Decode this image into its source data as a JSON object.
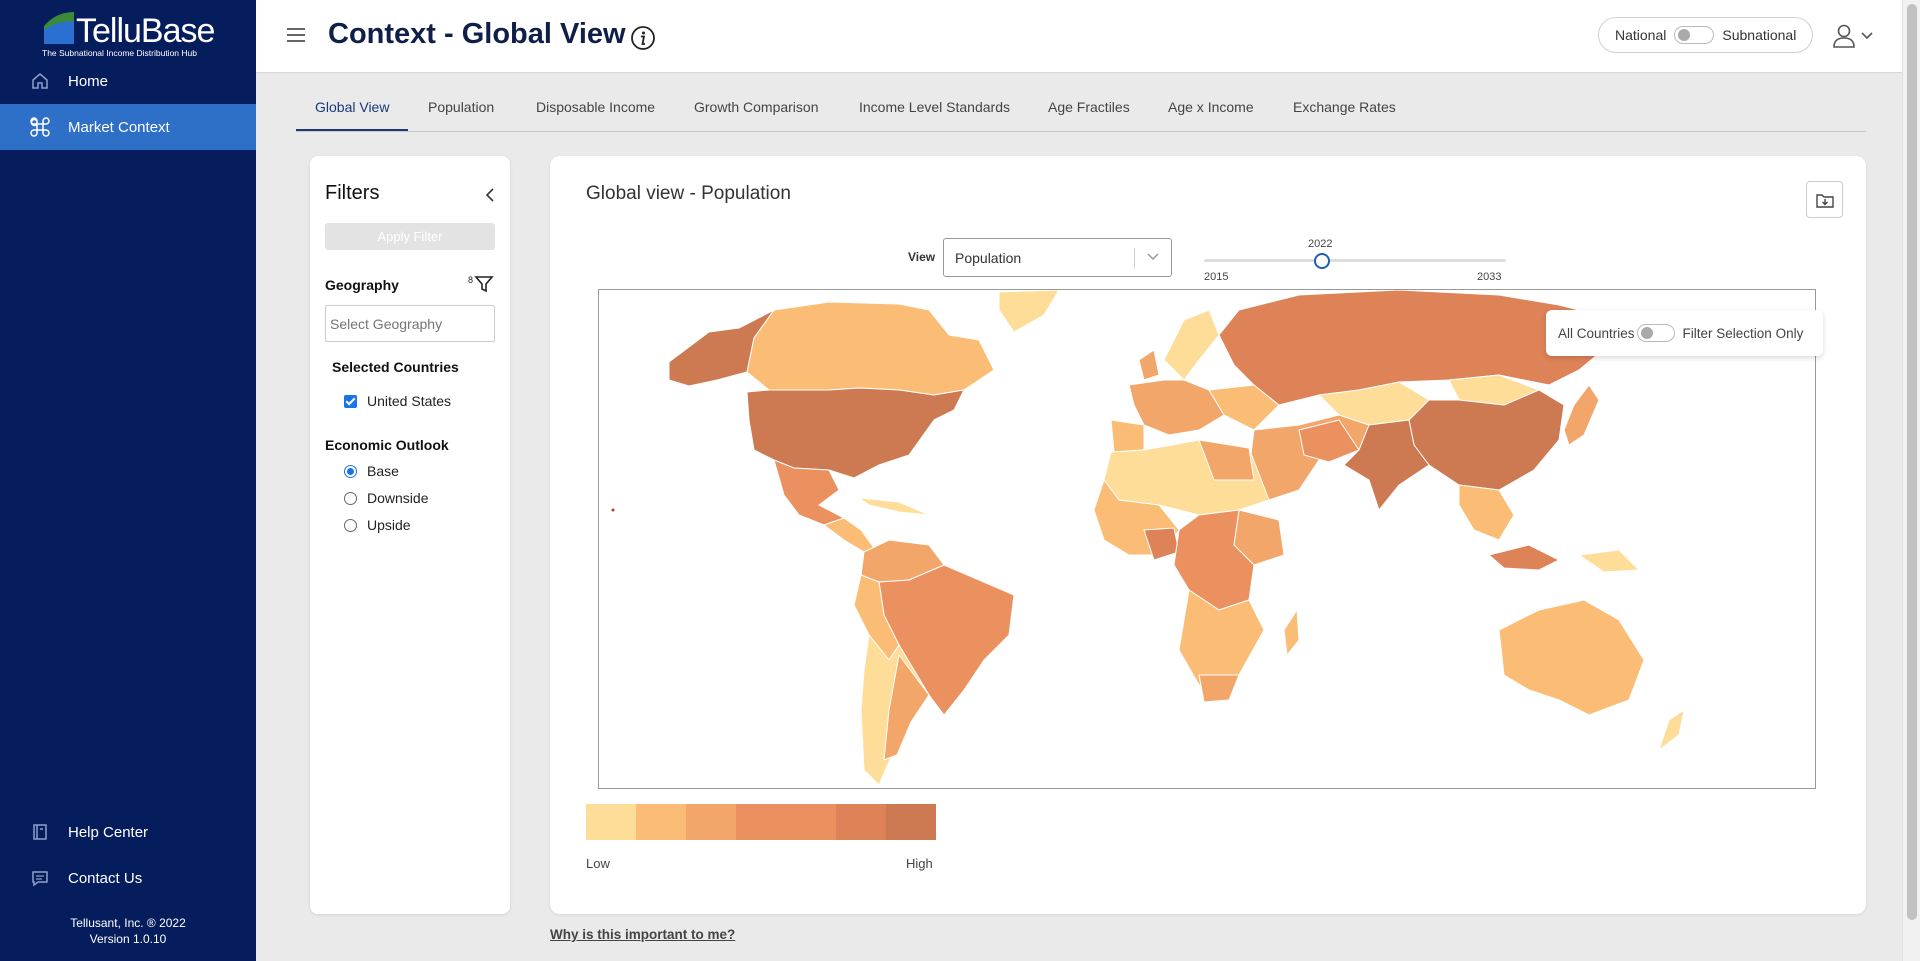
{
  "sidebar": {
    "logo": {
      "name": "TelluBase",
      "tagline": "The Subnational Income Distribution Hub"
    },
    "items": [
      {
        "label": "Home",
        "icon": "home-icon"
      },
      {
        "label": "Market Context",
        "icon": "command-icon"
      }
    ],
    "bottom_items": [
      {
        "label": "Help Center",
        "icon": "book-icon"
      },
      {
        "label": "Contact Us",
        "icon": "chat-icon"
      }
    ],
    "footer": {
      "company": "Tellusant, Inc. ® 2022",
      "version": "Version 1.0.10"
    }
  },
  "header": {
    "title": "Context - Global View",
    "toggle": {
      "left": "National",
      "right": "Subnational"
    }
  },
  "tabs": [
    "Global View",
    "Population",
    "Disposable Income",
    "Growth Comparison",
    "Income Level Standards",
    "Age Fractiles",
    "Age x Income",
    "Exchange Rates"
  ],
  "filters": {
    "title": "Filters",
    "apply_label": "Apply Filter",
    "geography_label": "Geography",
    "geography_count": "8",
    "geography_placeholder": "Select Geography",
    "selected_label": "Selected Countries",
    "selected_countries": [
      "United States"
    ],
    "outlook_label": "Economic Outlook",
    "outlook_options": [
      "Base",
      "Downside",
      "Upside"
    ],
    "outlook_selected": "Base"
  },
  "card": {
    "title": "Global view - Population",
    "view_label": "View",
    "view_value": "Population",
    "slider": {
      "min": "2015",
      "max": "2033",
      "value": "2022"
    },
    "toggle": {
      "left": "All Countries",
      "right": "Filter Selection Only"
    },
    "legend": {
      "low": "Low",
      "high": "High",
      "colors": [
        "#fddd98",
        "#fbbd76",
        "#f3a66a",
        "#eb915f",
        "#de8258",
        "#cd7a53"
      ]
    }
  },
  "why_link": "Why is this important to me?"
}
